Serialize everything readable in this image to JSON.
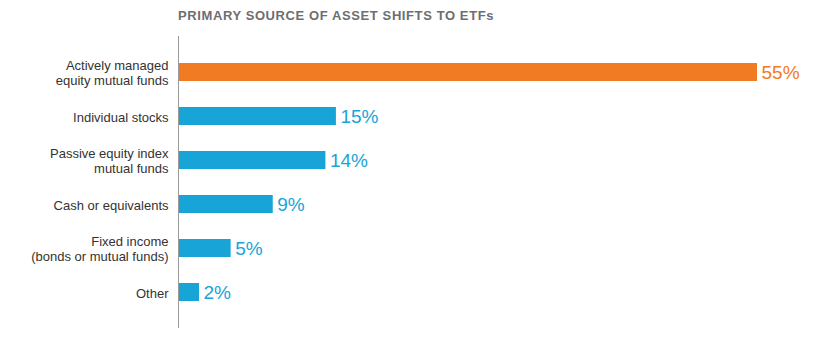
{
  "chart_data": {
    "type": "bar",
    "title": "PRIMARY SOURCE OF ASSET SHIFTS TO ETFs",
    "orientation": "horizontal",
    "categories": [
      "Actively managed\nequity mutual funds",
      "Individual stocks",
      "Passive equity index\nmutual funds",
      "Cash or equivalents",
      "Fixed income\n(bonds or mutual funds)",
      "Other"
    ],
    "values": [
      55,
      15,
      14,
      9,
      5,
      2
    ],
    "value_labels": [
      "55%",
      "15%",
      "14%",
      "9%",
      "5%",
      "2%"
    ],
    "colors": [
      "#f07b22",
      "#19a4d8",
      "#19a4d8",
      "#19a4d8",
      "#19a4d8",
      "#19a4d8"
    ],
    "xlim": [
      0,
      55
    ],
    "data_labels": true,
    "tick_labels": "y",
    "grid": false
  }
}
